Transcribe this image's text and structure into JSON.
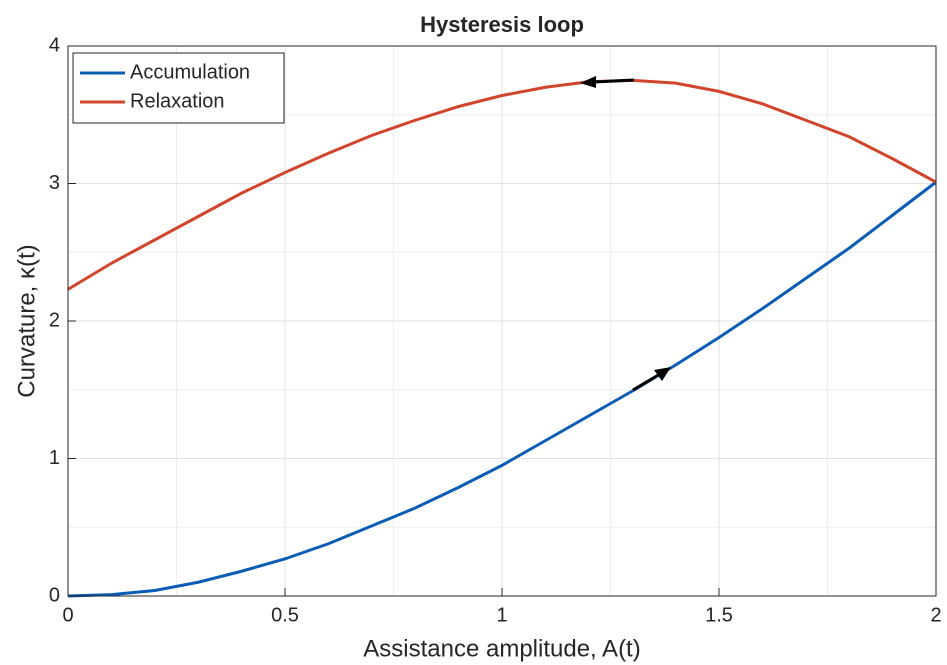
{
  "chart_data": {
    "type": "line",
    "title": "Hysteresis loop",
    "xlabel": "Assistance amplitude, A(t)",
    "ylabel": "Curvature, κ(t)",
    "x": [
      0,
      0.1,
      0.2,
      0.3,
      0.4,
      0.5,
      0.6,
      0.7,
      0.8,
      0.9,
      1.0,
      1.1,
      1.2,
      1.3,
      1.4,
      1.5,
      1.6,
      1.7,
      1.8,
      1.9,
      2.0
    ],
    "series": [
      {
        "name": "Accumulation",
        "color": "#0b5cb5",
        "values": [
          0,
          0.01,
          0.04,
          0.1,
          0.18,
          0.27,
          0.38,
          0.51,
          0.64,
          0.79,
          0.95,
          1.13,
          1.31,
          1.49,
          1.68,
          1.88,
          2.09,
          2.31,
          2.53,
          2.77,
          3.01
        ]
      },
      {
        "name": "Relaxation",
        "color": "#d0452b",
        "values": [
          2.23,
          2.42,
          2.59,
          2.76,
          2.93,
          3.08,
          3.22,
          3.35,
          3.46,
          3.56,
          3.64,
          3.7,
          3.74,
          3.75,
          3.73,
          3.67,
          3.58,
          3.46,
          3.34,
          3.18,
          3.01
        ]
      }
    ],
    "xlim": [
      0,
      2
    ],
    "xticks": [
      0,
      0.5,
      1,
      1.5,
      2
    ],
    "ylim": [
      0,
      4
    ],
    "yticks": [
      0,
      1,
      2,
      3,
      4
    ],
    "minor_xticks": [
      0.25,
      0.75,
      1.25,
      1.75
    ],
    "minor_yticks": [
      0.5,
      1.5,
      2.5,
      3.5
    ],
    "grid": true,
    "legend": "upper left"
  }
}
